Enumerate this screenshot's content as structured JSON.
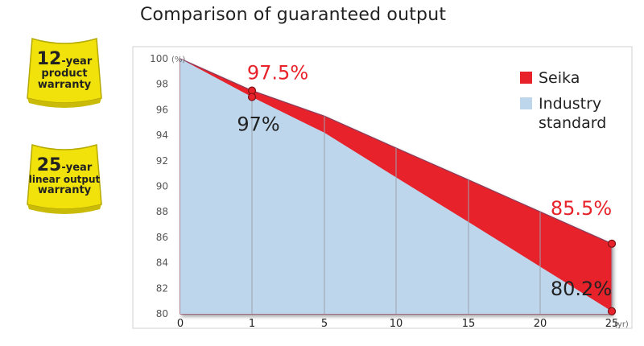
{
  "title": "Comparison of guaranteed output",
  "badges": [
    {
      "number": "12",
      "suffix": "-year",
      "line2": "product",
      "line3": "warranty"
    },
    {
      "number": "25",
      "suffix": "-year",
      "line2": "linear output",
      "line3": "warranty"
    }
  ],
  "chart_data": {
    "type": "area",
    "x_categories": [
      "0",
      "1",
      "5",
      "10",
      "15",
      "20",
      "25"
    ],
    "x_unit": "(yr)",
    "y_unit": "(%)",
    "ylim": [
      80,
      100
    ],
    "y_ticks": [
      80,
      82,
      84,
      86,
      88,
      90,
      92,
      94,
      96,
      98,
      100
    ],
    "grid": true,
    "legend_position": "top-right",
    "series": [
      {
        "name": "Seika",
        "color": "#e8222a",
        "values": [
          100,
          97.5,
          95.5,
          93.0,
          90.5,
          88.0,
          85.5
        ]
      },
      {
        "name": "Industry standard",
        "color": "#bdd6ec",
        "values": [
          100,
          97.0,
          94.2,
          90.7,
          87.2,
          83.7,
          80.2
        ]
      }
    ],
    "annotations": [
      {
        "text": "97.5%",
        "x": "1",
        "y": 97.5,
        "color": "#e8222a"
      },
      {
        "text": "97%",
        "x": "1",
        "y": 97.0,
        "color": "#222222"
      },
      {
        "text": "85.5%",
        "x": "25",
        "y": 85.5,
        "color": "#e8222a"
      },
      {
        "text": "80.2%",
        "x": "25",
        "y": 80.2,
        "color": "#222222"
      }
    ]
  }
}
